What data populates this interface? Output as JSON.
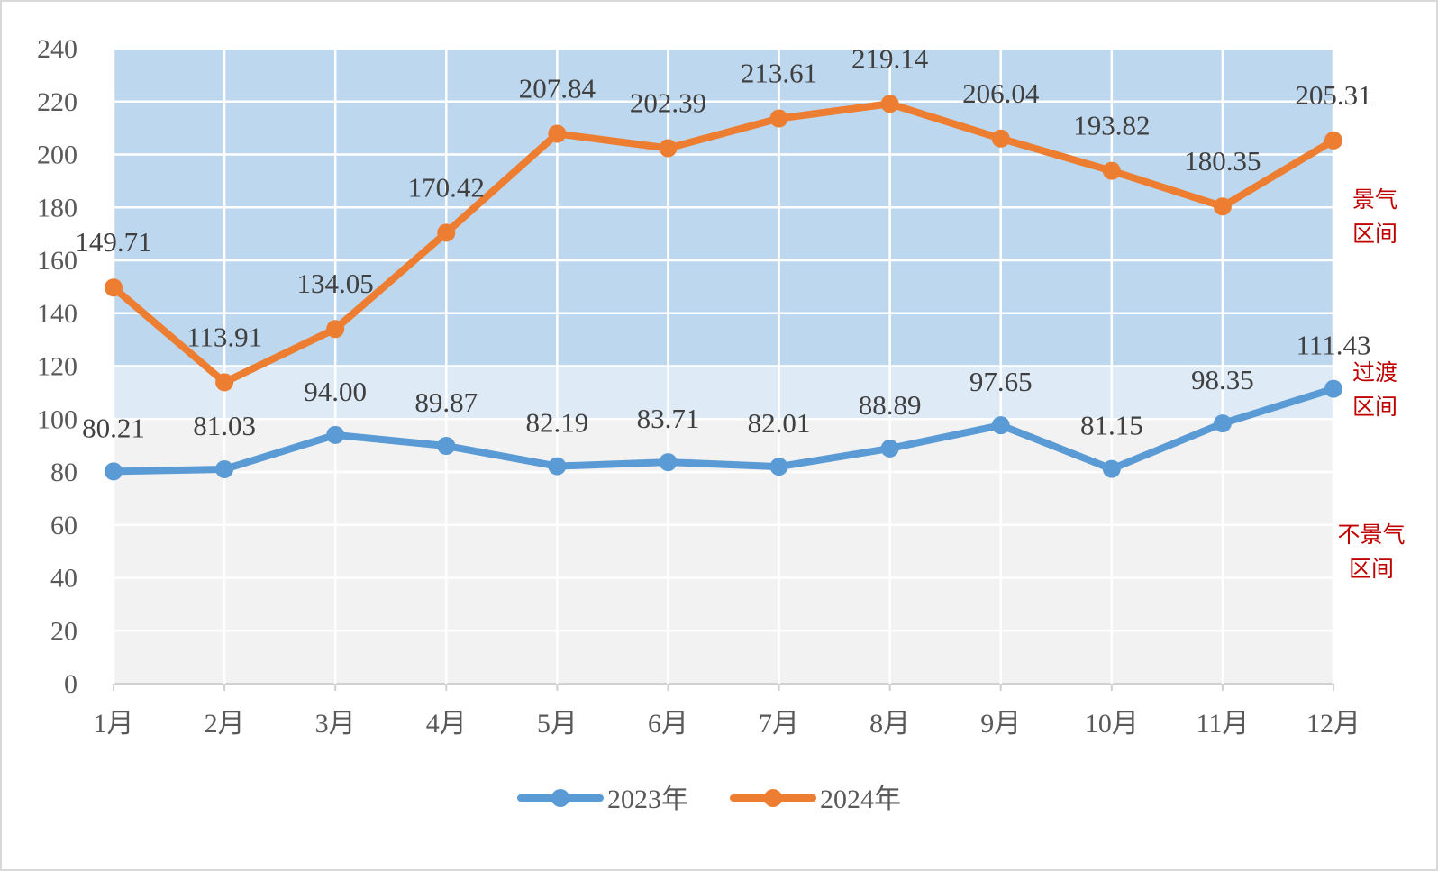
{
  "chart_data": {
    "type": "line",
    "categories": [
      "1月",
      "2月",
      "3月",
      "4月",
      "5月",
      "6月",
      "7月",
      "8月",
      "9月",
      "10月",
      "11月",
      "12月"
    ],
    "series": [
      {
        "name": "2023年",
        "color": "#5b9bd5",
        "values": [
          80.21,
          81.03,
          94.0,
          89.87,
          82.19,
          83.71,
          82.01,
          88.89,
          97.65,
          81.15,
          98.35,
          111.43
        ]
      },
      {
        "name": "2024年",
        "color": "#ed7d31",
        "values": [
          149.71,
          113.91,
          134.05,
          170.42,
          207.84,
          202.39,
          213.61,
          219.14,
          206.04,
          193.82,
          180.35,
          205.31
        ]
      }
    ],
    "ylim": [
      0,
      240
    ],
    "yticks": [
      0,
      20,
      40,
      60,
      80,
      100,
      120,
      140,
      160,
      180,
      200,
      220,
      240
    ],
    "grid": true,
    "legend": "bottom",
    "bands": [
      {
        "from": 0,
        "to": 100,
        "color": "#f2f2f2",
        "label_lines": [
          "不景气",
          "区间"
        ]
      },
      {
        "from": 100,
        "to": 120,
        "color": "#deebf7",
        "label_lines": [
          "过渡",
          "区间"
        ]
      },
      {
        "from": 120,
        "to": 240,
        "color": "#bdd7ee",
        "label_lines": [
          "景气",
          "区间"
        ]
      }
    ],
    "band_label_color": "#c00000"
  }
}
